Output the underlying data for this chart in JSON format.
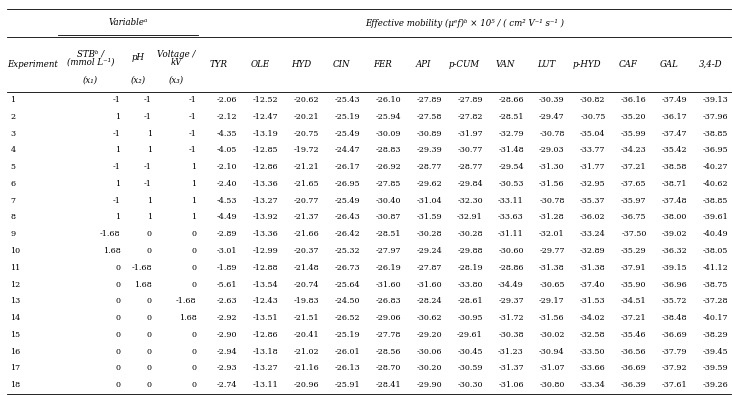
{
  "rows": [
    [
      1,
      -1,
      -1,
      -1,
      -2.06,
      -12.52,
      -20.62,
      -25.43,
      -26.1,
      -27.89,
      -27.89,
      -28.66,
      -30.39,
      -30.82,
      -36.16,
      -37.49,
      -39.13
    ],
    [
      2,
      1,
      -1,
      -1,
      -2.12,
      -12.47,
      -20.21,
      -25.19,
      -25.94,
      -27.58,
      -27.82,
      -28.51,
      -29.47,
      -30.75,
      -35.2,
      -36.17,
      -37.96
    ],
    [
      3,
      -1,
      1,
      -1,
      -4.35,
      -13.19,
      -20.75,
      -25.49,
      -30.09,
      -30.89,
      -31.97,
      -32.79,
      -30.78,
      -35.04,
      -35.99,
      -37.47,
      -38.85
    ],
    [
      4,
      1,
      1,
      -1,
      -4.05,
      -12.85,
      -19.72,
      -24.47,
      -28.83,
      -29.39,
      -30.77,
      -31.48,
      -29.03,
      -33.77,
      -34.23,
      -35.42,
      -36.95
    ],
    [
      5,
      -1,
      -1,
      1,
      -2.1,
      -12.86,
      -21.21,
      -26.17,
      -26.92,
      -28.77,
      -28.77,
      -29.54,
      -31.3,
      -31.77,
      -37.21,
      -38.58,
      -40.27
    ],
    [
      6,
      1,
      -1,
      1,
      -2.4,
      -13.36,
      -21.65,
      -26.95,
      -27.85,
      -29.62,
      -29.84,
      -30.53,
      -31.56,
      -32.95,
      -37.65,
      -38.71,
      -40.62
    ],
    [
      7,
      -1,
      1,
      1,
      -4.53,
      -13.27,
      -20.77,
      -25.49,
      -30.4,
      -31.04,
      -32.3,
      -33.11,
      -30.78,
      -35.37,
      -35.97,
      -37.48,
      -38.85
    ],
    [
      8,
      1,
      1,
      1,
      -4.49,
      -13.92,
      -21.37,
      -26.43,
      -30.87,
      -31.59,
      -32.91,
      -33.63,
      -31.28,
      -36.02,
      -36.75,
      -38.0,
      -39.61
    ],
    [
      9,
      -1.68,
      0,
      0,
      -2.89,
      -13.36,
      -21.66,
      -26.42,
      -28.51,
      -30.28,
      -30.28,
      -31.11,
      -32.01,
      -33.24,
      -37.5,
      -39.02,
      -40.49
    ],
    [
      10,
      1.68,
      0,
      0,
      -3.01,
      -12.99,
      -20.37,
      -25.32,
      -27.97,
      -29.24,
      -29.88,
      -30.6,
      -29.77,
      -32.89,
      -35.29,
      -36.32,
      -38.05
    ],
    [
      11,
      0,
      -1.68,
      0,
      -1.89,
      -12.88,
      -21.48,
      -26.73,
      -26.19,
      -27.87,
      -28.19,
      -28.86,
      -31.38,
      -31.38,
      -37.91,
      -39.15,
      -41.12
    ],
    [
      12,
      0,
      1.68,
      0,
      -5.61,
      -13.54,
      -20.74,
      -25.64,
      -31.6,
      -31.6,
      -33.8,
      -34.49,
      -30.65,
      -37.4,
      -35.9,
      -36.96,
      -38.75
    ],
    [
      13,
      0,
      0,
      -1.68,
      -2.63,
      -12.43,
      -19.83,
      -24.5,
      -26.83,
      -28.24,
      -28.61,
      -29.37,
      -29.17,
      -31.53,
      -34.51,
      -35.72,
      -37.28
    ],
    [
      14,
      0,
      0,
      1.68,
      -2.92,
      -13.51,
      -21.51,
      -26.52,
      -29.06,
      -30.62,
      -30.95,
      -31.72,
      -31.56,
      -34.02,
      -37.21,
      -38.48,
      -40.17
    ],
    [
      15,
      0,
      0,
      0,
      -2.9,
      -12.86,
      -20.41,
      -25.19,
      -27.78,
      -29.2,
      -29.61,
      -30.38,
      -30.02,
      -32.58,
      -35.46,
      -36.69,
      -38.29
    ],
    [
      16,
      0,
      0,
      0,
      -2.94,
      -13.18,
      -21.02,
      -26.01,
      -28.56,
      -30.06,
      -30.45,
      -31.23,
      -30.94,
      -33.5,
      -36.56,
      -37.79,
      -39.45
    ],
    [
      17,
      0,
      0,
      0,
      -2.93,
      -13.27,
      -21.16,
      -26.13,
      -28.7,
      -30.2,
      -30.59,
      -31.37,
      -31.07,
      -33.66,
      -36.69,
      -37.92,
      -39.59
    ],
    [
      18,
      0,
      0,
      0,
      -2.74,
      -13.11,
      -20.96,
      -25.91,
      -28.41,
      -29.9,
      -30.3,
      -31.06,
      -30.8,
      -33.34,
      -36.39,
      -37.61,
      -39.26
    ]
  ],
  "span_header_var": "Variableᵃ",
  "span_header_mob": "Effective mobility (μᵉf)ᵇ × 10⁵ / ( cm² V⁻¹ s⁻¹ )",
  "sub_col0": "Experiment",
  "sub_col1": "STBᵇ /\n(mmol L⁻¹)\n(x₁)",
  "sub_col2": "pH\n(x₂)",
  "sub_col3": "Voltage /\nkV\n(x₃)",
  "mob_cols": [
    "TYR",
    "OLE",
    "HYD",
    "CIN",
    "FER",
    "API",
    "p-CUM",
    "VAN",
    "LUT",
    "p-HYD",
    "CAF",
    "GAL",
    "3,4-D"
  ],
  "fontsize": 5.8,
  "header_fontsize": 6.2
}
